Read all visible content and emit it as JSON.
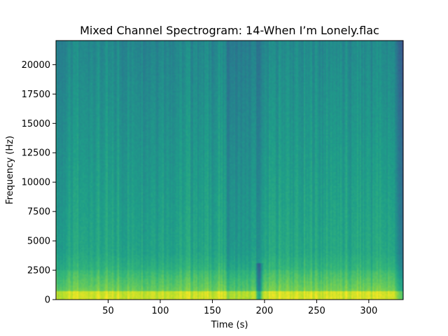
{
  "chart_data": {
    "type": "heatmap",
    "title": "Mixed Channel Spectrogram: 14-When I’m Lonely.flac",
    "xlabel": "Time (s)",
    "ylabel": "Frequency (Hz)",
    "xlim": [
      0,
      333
    ],
    "ylim": [
      0,
      22050
    ],
    "x_ticks": [
      50,
      100,
      150,
      200,
      250,
      300
    ],
    "y_ticks": [
      0,
      2500,
      5000,
      7500,
      10000,
      12500,
      15000,
      17500,
      20000
    ],
    "colormap": "viridis",
    "grid": false,
    "legend": "none",
    "features": {
      "low_energy_dip_time_s": 195,
      "dark_band_start_s": 163,
      "dark_band_end_s": 197,
      "high_energy_band_hz": [
        0,
        2500
      ],
      "fade_out_start_s": 325
    },
    "colors": {
      "low": "#30908c",
      "mid": "#3cb56f",
      "high": "#b5de2b",
      "peak": "#d8e219",
      "dark": "#2a788e"
    }
  }
}
